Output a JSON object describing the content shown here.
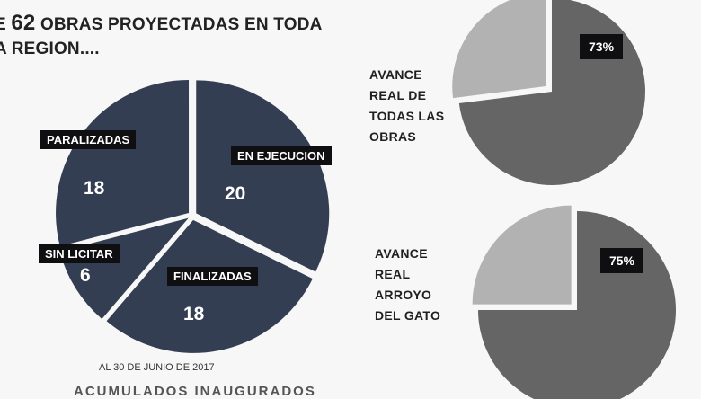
{
  "title": {
    "prefix": "E ",
    "number": "62",
    "line1_rest": " OBRAS PROYECTADAS EN TODA",
    "line2": "A REGION...."
  },
  "chart_data": [
    {
      "type": "pie",
      "categories": [
        "EN EJECUCION",
        "FINALIZADAS",
        "SIN LICITAR",
        "PARALIZADAS"
      ],
      "values": [
        20,
        18,
        6,
        18
      ],
      "colors": {
        "slice": "#343e52",
        "separator": "#ffffff"
      }
    },
    {
      "type": "pie",
      "title": "AVANCE REAL DE TODAS LAS OBRAS",
      "values": [
        73,
        27
      ],
      "value_label": "73%",
      "colors": {
        "done": "#656565",
        "remaining": "#b2b2b2"
      }
    },
    {
      "type": "pie",
      "title": "AVANCE REAL ARROYO DEL GATO",
      "values": [
        75,
        25
      ],
      "value_label": "75%",
      "colors": {
        "done": "#656565",
        "remaining": "#b2b2b2"
      }
    }
  ],
  "footer": {
    "date": "AL 30 DE JUNIO DE 2017",
    "cut_text": "ACUMULADOS INAUGURADOS"
  },
  "gauge1": {
    "label_lines": [
      "AVANCE",
      "REAL DE",
      "TODAS LAS",
      "OBRAS"
    ]
  },
  "gauge2": {
    "label_lines": [
      "AVANCE",
      "REAL",
      "ARROYO",
      "DEL GATO"
    ]
  }
}
